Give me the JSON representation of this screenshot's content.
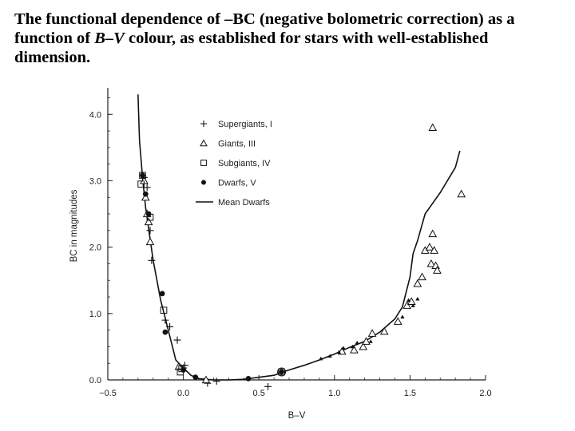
{
  "title": {
    "part1": "The functional dependence of –BC (negative bolometric correction) as a function of ",
    "italic_bv": "B–V",
    "part2": " colour, as established for stars with well-established dimension."
  },
  "chart_data": {
    "type": "scatter",
    "xlabel": "B–V",
    "ylabel": "BC in magnitudes",
    "xlim": [
      -0.5,
      2.0
    ],
    "ylim": [
      0.0,
      4.0
    ],
    "xticks": [
      "-0.5",
      "0.0",
      "0.5",
      "1.0",
      "1.5",
      "2.0"
    ],
    "yticks": [
      "0.0",
      "1.0",
      "2.0",
      "3.0",
      "4.0"
    ],
    "legend_position": "top-right",
    "series": [
      {
        "name": "Supergiants, I",
        "marker": "plus",
        "points": [
          [
            -0.26,
            3.05
          ],
          [
            -0.24,
            2.9
          ],
          [
            -0.22,
            2.25
          ],
          [
            -0.21,
            1.8
          ],
          [
            -0.12,
            0.9
          ],
          [
            -0.09,
            0.8
          ],
          [
            -0.04,
            0.6
          ],
          [
            0.0,
            0.18
          ],
          [
            0.01,
            0.22
          ],
          [
            0.16,
            -0.05
          ],
          [
            0.22,
            -0.02
          ],
          [
            0.56,
            -0.1
          ]
        ]
      },
      {
        "name": "Giants, III",
        "marker": "triangle",
        "points": [
          [
            -0.26,
            3.0
          ],
          [
            -0.25,
            2.75
          ],
          [
            -0.24,
            2.5
          ],
          [
            -0.23,
            2.38
          ],
          [
            -0.22,
            2.08
          ],
          [
            -0.03,
            0.2
          ],
          [
            0.15,
            0.0
          ],
          [
            1.05,
            0.43
          ],
          [
            1.13,
            0.45
          ],
          [
            1.19,
            0.5
          ],
          [
            1.21,
            0.58
          ],
          [
            1.25,
            0.7
          ],
          [
            1.33,
            0.73
          ],
          [
            1.42,
            0.88
          ],
          [
            1.48,
            1.12
          ],
          [
            1.51,
            1.18
          ],
          [
            1.55,
            1.45
          ],
          [
            1.58,
            1.55
          ],
          [
            1.6,
            1.95
          ],
          [
            1.63,
            2.0
          ],
          [
            1.64,
            1.75
          ],
          [
            1.65,
            2.2
          ],
          [
            1.66,
            1.95
          ],
          [
            1.67,
            1.72
          ],
          [
            1.68,
            1.65
          ],
          [
            1.65,
            3.8
          ],
          [
            1.84,
            2.8
          ]
        ]
      },
      {
        "name": "Subgiants, IV",
        "marker": "square",
        "points": [
          [
            -0.28,
            2.95
          ],
          [
            -0.27,
            3.08
          ],
          [
            -0.22,
            2.45
          ],
          [
            -0.13,
            1.05
          ],
          [
            -0.02,
            0.12
          ],
          [
            -0.01,
            0.17
          ],
          [
            0.65,
            0.12
          ]
        ]
      },
      {
        "name": "Dwarfs, V",
        "marker": "dot",
        "points": [
          [
            -0.27,
            3.08
          ],
          [
            -0.25,
            2.8
          ],
          [
            -0.23,
            2.5
          ],
          [
            -0.14,
            1.3
          ],
          [
            -0.12,
            0.72
          ],
          [
            0.0,
            0.15
          ],
          [
            0.08,
            0.04
          ],
          [
            0.43,
            0.02
          ],
          [
            0.65,
            0.12
          ]
        ]
      }
    ],
    "small_dwarfs": [
      [
        0.91,
        0.32
      ],
      [
        0.97,
        0.36
      ],
      [
        1.03,
        0.42
      ],
      [
        1.06,
        0.48
      ],
      [
        1.12,
        0.5
      ],
      [
        1.15,
        0.56
      ],
      [
        1.24,
        0.58
      ],
      [
        1.45,
        0.95
      ],
      [
        1.49,
        1.2
      ],
      [
        1.52,
        1.12
      ],
      [
        1.55,
        1.22
      ]
    ],
    "mean_line": {
      "name": "Mean Dwarfs",
      "x": [
        -0.3,
        -0.29,
        -0.27,
        -0.25,
        -0.2,
        -0.15,
        -0.1,
        -0.05,
        0.0,
        0.05,
        0.1,
        0.2,
        0.3,
        0.4,
        0.5,
        0.6,
        0.7,
        0.8,
        0.9,
        1.0,
        1.1,
        1.2,
        1.3,
        1.4,
        1.45,
        1.5,
        1.52,
        1.55,
        1.6,
        1.7,
        1.8,
        1.83
      ],
      "y": [
        4.3,
        3.6,
        3.05,
        2.6,
        1.8,
        1.2,
        0.75,
        0.3,
        0.18,
        0.07,
        0.02,
        0.0,
        0.0,
        0.01,
        0.04,
        0.07,
        0.15,
        0.22,
        0.3,
        0.39,
        0.49,
        0.58,
        0.72,
        0.92,
        1.1,
        1.55,
        1.9,
        2.1,
        2.5,
        2.82,
        3.2,
        3.45
      ]
    }
  }
}
